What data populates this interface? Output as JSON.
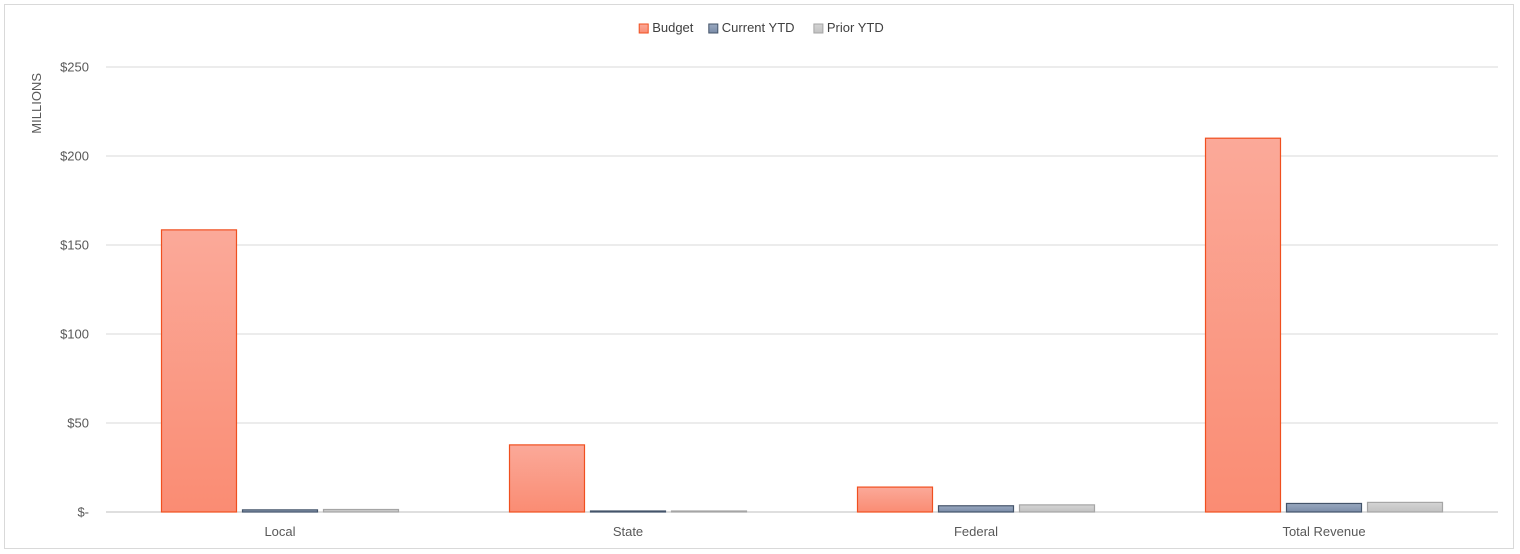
{
  "chart_data": {
    "type": "bar",
    "title": "",
    "xlabel": "",
    "ylabel": "MILLIONS",
    "categories": [
      "Local",
      "State",
      "Federal",
      "Total Revenue"
    ],
    "series": [
      {
        "name": "Budget",
        "values": [
          158.5,
          37.7,
          14.0,
          210.0
        ],
        "color": "#fa8f78",
        "stroke": "#f04f1f"
      },
      {
        "name": "Current YTD",
        "values": [
          1.2,
          0.5,
          3.5,
          4.8
        ],
        "color": "#8496b0",
        "stroke": "#44546a"
      },
      {
        "name": "Prior YTD",
        "values": [
          1.4,
          0.5,
          4.0,
          5.4
        ],
        "color": "#c9c9c9",
        "stroke": "#a5a5a5"
      }
    ],
    "ylim": [
      0,
      250
    ],
    "yticks": [
      0,
      50,
      100,
      150,
      200,
      250
    ],
    "ytick_labels": [
      "$-",
      "$50",
      "$100",
      "$150",
      "$200",
      "$250"
    ],
    "grid": true,
    "legend_position": "top-center"
  }
}
